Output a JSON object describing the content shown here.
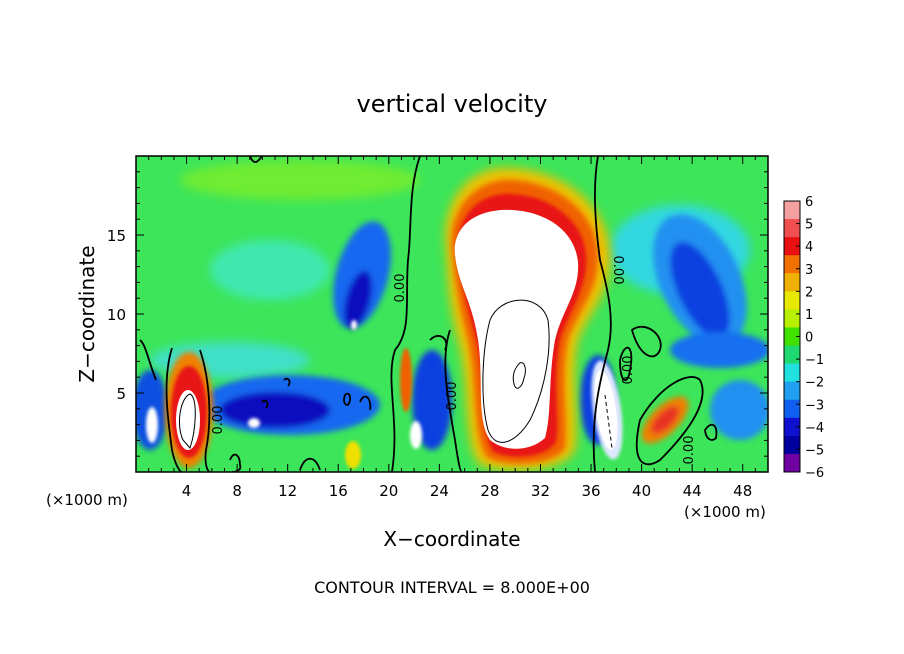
{
  "chart_data": {
    "type": "heatmap",
    "title": "vertical velocity",
    "xlabel": "X−coordinate",
    "ylabel": "Z−coordinate",
    "x_unit_label_left": "(×1000 m)",
    "x_unit_label_right": "(×1000 m)",
    "footer": "CONTOUR INTERVAL = 8.000E+00",
    "xlim": [
      0,
      50
    ],
    "ylim": [
      0,
      20
    ],
    "x_ticks": [
      4,
      8,
      12,
      16,
      20,
      24,
      28,
      32,
      36,
      40,
      44,
      48
    ],
    "y_ticks": [
      5,
      10,
      15
    ],
    "contour_labels": [
      "0.00",
      "0.00",
      "0.00",
      "0.00",
      "0.00",
      "0.00"
    ],
    "colorbar": {
      "min": -6,
      "max": 6,
      "labels": [
        "6",
        "5",
        "4",
        "3",
        "2",
        "1",
        "0",
        "−1",
        "−2",
        "−3",
        "−4",
        "−5",
        "−6"
      ],
      "colors": [
        "#f4a0a0",
        "#f25050",
        "#e81010",
        "#f07000",
        "#f0b000",
        "#e8e800",
        "#b8f000",
        "#40e000",
        "#20d870",
        "#20e0e0",
        "#20a0f0",
        "#1060f0",
        "#1010d0",
        "#0000a0",
        "#7000a0"
      ]
    },
    "features": [
      {
        "kind": "updraft",
        "x": 29.5,
        "z": 9.5,
        "peak": ">6"
      },
      {
        "kind": "updraft",
        "x": 4.2,
        "z": 3.0,
        "peak": ">6"
      },
      {
        "kind": "updraft",
        "x": 37.6,
        "z": 4.5,
        "peak": ">6"
      },
      {
        "kind": "updraft",
        "x": 42.8,
        "z": 3.2,
        "peak": "4"
      },
      {
        "kind": "updraft",
        "x": 21.8,
        "z": 4.5,
        "peak": "4"
      },
      {
        "kind": "downdraft",
        "x": 17.0,
        "z": 11.5,
        "peak": "-6"
      },
      {
        "kind": "downdraft",
        "x": 10.5,
        "z": 4.0,
        "peak": "-6"
      },
      {
        "kind": "downdraft",
        "x": 25.0,
        "z": 3.5,
        "peak": "-5"
      },
      {
        "kind": "downdraft",
        "x": 35.5,
        "z": 4.5,
        "peak": "-5"
      },
      {
        "kind": "downdraft",
        "x": 45.0,
        "z": 12.5,
        "peak": "-4"
      },
      {
        "kind": "downdraft",
        "x": 1.5,
        "z": 3.5,
        "peak": "-4"
      }
    ]
  }
}
